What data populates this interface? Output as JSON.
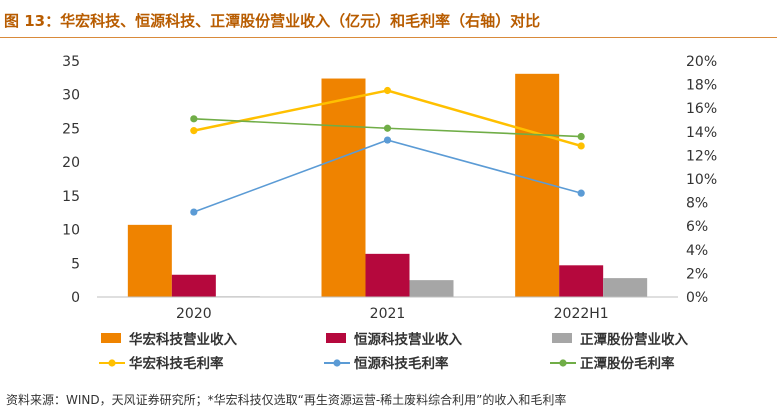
{
  "figure": {
    "title": "图 13：华宏科技、恒源科技、正潭股份营业收入（亿元）和毛利率（右轴）对比",
    "source": "资料来源：WIND，天风证券研究所；*华宏科技仅选取“再生资源运营-稀土废料综合利用”的收入和毛利率"
  },
  "colors": {
    "title": "#b85c00",
    "axis": "#555555",
    "text": "#333333",
    "huahong_revenue": "#ef8300",
    "hengyuan_revenue": "#b5083d",
    "zhengtan_revenue": "#a6a6a6",
    "huahong_margin": "#ffc000",
    "hengyuan_margin": "#5b9bd5",
    "zhengtan_margin": "#70ad47"
  },
  "chart_data": {
    "type": "bar",
    "categories": [
      "2020",
      "2021",
      "2022H1"
    ],
    "series": [
      {
        "name": "华宏科技营业收入",
        "kind": "bar",
        "axis": "left",
        "color_key": "huahong_revenue",
        "values": [
          10.7,
          32.4,
          33.1
        ]
      },
      {
        "name": "恒源科技营业收入",
        "kind": "bar",
        "axis": "left",
        "color_key": "hengyuan_revenue",
        "values": [
          3.3,
          6.4,
          4.7
        ]
      },
      {
        "name": "正潭股份营业收入",
        "kind": "bar",
        "axis": "left",
        "color_key": "zhengtan_revenue",
        "values": [
          0.1,
          2.5,
          2.8
        ]
      },
      {
        "name": "华宏科技毛利率",
        "kind": "line",
        "axis": "right",
        "color_key": "huahong_margin",
        "values": [
          14.1,
          17.5,
          12.8
        ]
      },
      {
        "name": "恒源科技毛利率",
        "kind": "line",
        "axis": "right",
        "color_key": "hengyuan_margin",
        "values": [
          7.2,
          13.3,
          8.8
        ]
      },
      {
        "name": "正潭股份毛利率",
        "kind": "line",
        "axis": "right",
        "color_key": "zhengtan_margin",
        "values": [
          15.1,
          14.3,
          13.6
        ]
      }
    ],
    "left_axis": {
      "range": [
        0,
        35
      ],
      "ticks": [
        0,
        5,
        10,
        15,
        20,
        25,
        30,
        35
      ],
      "tick_labels": [
        "0",
        "5",
        "10",
        "15",
        "20",
        "25",
        "30",
        "35"
      ]
    },
    "right_axis": {
      "range": [
        0,
        20
      ],
      "ticks": [
        0,
        2,
        4,
        6,
        8,
        10,
        12,
        14,
        16,
        18,
        20
      ],
      "tick_labels": [
        "0%",
        "2%",
        "4%",
        "6%",
        "8%",
        "10%",
        "12%",
        "14%",
        "16%",
        "18%",
        "20%"
      ]
    },
    "grid": false,
    "legend_position": "bottom"
  }
}
